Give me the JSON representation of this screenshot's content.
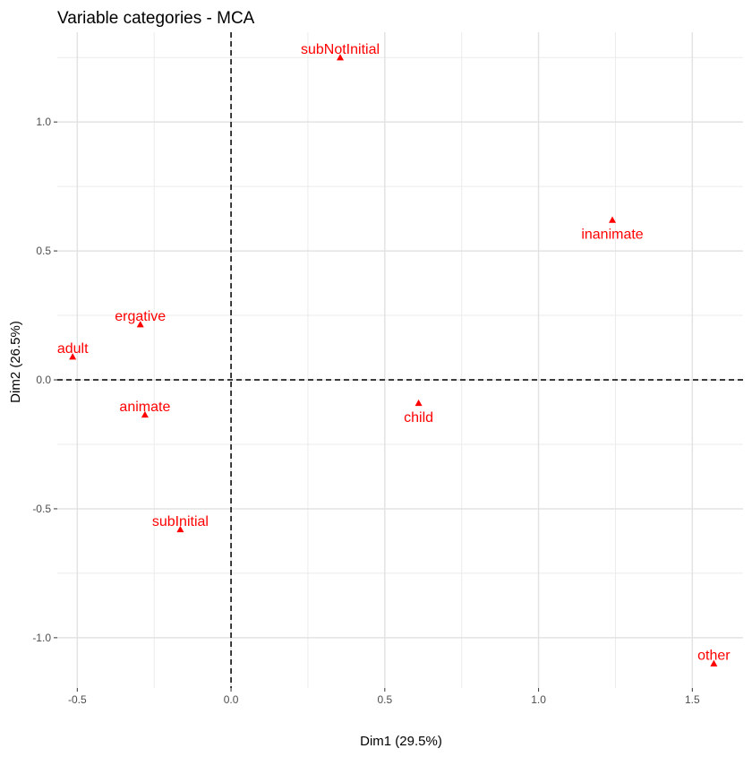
{
  "chart_data": {
    "type": "scatter",
    "title": "Variable categories - MCA",
    "xlabel": "Dim1 (29.5%)",
    "ylabel": "Dim2 (26.5%)",
    "xlim": [
      -0.565,
      1.665
    ],
    "ylim": [
      -1.195,
      1.348
    ],
    "x_ticks": [
      -0.5,
      0.0,
      0.5,
      1.0,
      1.5
    ],
    "x_tick_labels": [
      "-0.5",
      "0.0",
      "0.5",
      "1.0",
      "1.5"
    ],
    "y_ticks": [
      -1.0,
      -0.5,
      0.0,
      0.5,
      1.0
    ],
    "y_tick_labels": [
      "-1.0",
      "-0.5",
      "0.0",
      "0.5",
      "1.0"
    ],
    "grid": true,
    "reference_lines": {
      "x": 0,
      "y": 0,
      "style": "dashed"
    },
    "marker": "triangle",
    "color": "#ff0000",
    "points": [
      {
        "label": "subNotInitial",
        "x": 0.355,
        "y": 1.25,
        "label_pos": "above"
      },
      {
        "label": "inanimate",
        "x": 1.24,
        "y": 0.62,
        "label_pos": "below"
      },
      {
        "label": "ergative",
        "x": -0.295,
        "y": 0.215,
        "label_pos": "above"
      },
      {
        "label": "adult",
        "x": -0.515,
        "y": 0.09,
        "label_pos": "above"
      },
      {
        "label": "animate",
        "x": -0.28,
        "y": -0.135,
        "label_pos": "above"
      },
      {
        "label": "child",
        "x": 0.61,
        "y": -0.09,
        "label_pos": "below"
      },
      {
        "label": "subInitial",
        "x": -0.165,
        "y": -0.58,
        "label_pos": "above"
      },
      {
        "label": "other",
        "x": 1.57,
        "y": -1.1,
        "label_pos": "above"
      }
    ]
  }
}
